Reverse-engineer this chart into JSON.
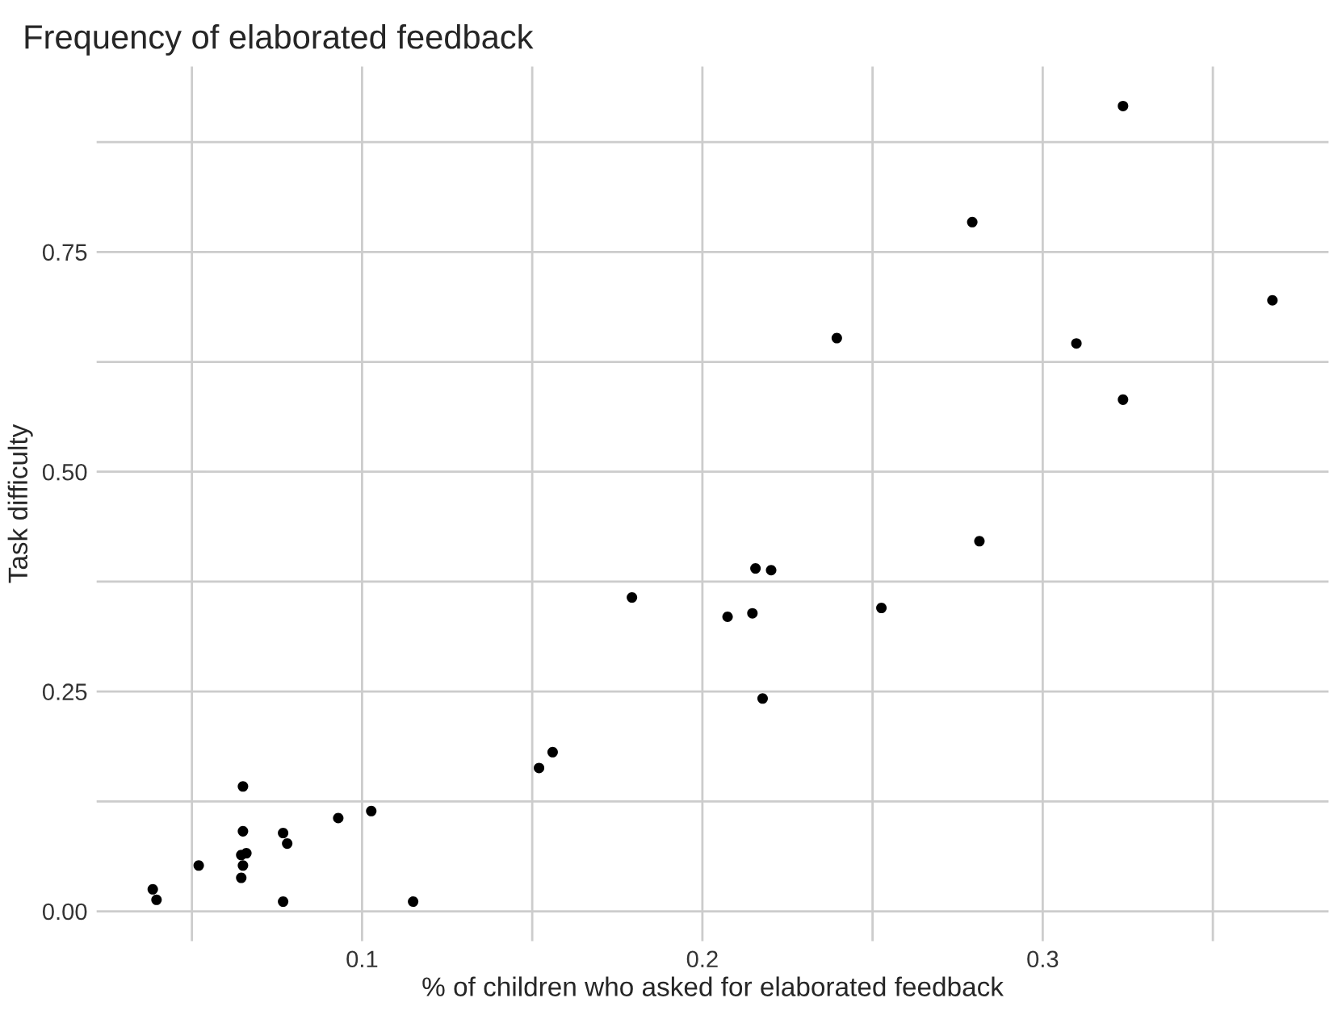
{
  "chart_data": {
    "type": "scatter",
    "title": "Frequency of elaborated feedback",
    "xlabel": "% of children who asked for elaborated feedback",
    "ylabel": "Task difficulty",
    "x": [
      0.0385,
      0.0396,
      0.052,
      0.065,
      0.065,
      0.0645,
      0.066,
      0.065,
      0.0645,
      0.0768,
      0.078,
      0.0768,
      0.093,
      0.1027,
      0.115,
      0.152,
      0.156,
      0.1793,
      0.2074,
      0.2147,
      0.2156,
      0.2202,
      0.2177,
      0.2526,
      0.2814,
      0.2395,
      0.2793,
      0.3236,
      0.3099,
      0.3236,
      0.3675
    ],
    "values": [
      0.025,
      0.013,
      0.052,
      0.142,
      0.091,
      0.064,
      0.066,
      0.052,
      0.038,
      0.089,
      0.077,
      0.011,
      0.106,
      0.114,
      0.011,
      0.163,
      0.181,
      0.357,
      0.335,
      0.339,
      0.39,
      0.388,
      0.242,
      0.345,
      0.421,
      0.652,
      0.784,
      0.916,
      0.646,
      0.582,
      0.695
    ],
    "color": "#000000",
    "marker": "circle",
    "xlim": [
      0.022,
      0.384
    ],
    "ylim": [
      -0.034,
      0.961
    ],
    "xticks": [
      {
        "value": 0.05,
        "label": null
      },
      0.1,
      {
        "value": 0.15,
        "label": null
      },
      0.2,
      {
        "value": 0.25,
        "label": null
      },
      0.3,
      {
        "value": 0.35,
        "label": null
      }
    ],
    "yticks": [
      {
        "value": 0.0,
        "label": "0.00"
      },
      {
        "value": 0.125,
        "label": null
      },
      {
        "value": 0.25,
        "label": "0.25"
      },
      {
        "value": 0.375,
        "label": null
      },
      {
        "value": 0.5,
        "label": "0.50"
      },
      {
        "value": 0.625,
        "label": null
      },
      {
        "value": 0.75,
        "label": "0.75"
      },
      {
        "value": 0.875,
        "label": null
      }
    ],
    "grid": true,
    "legend": false
  }
}
